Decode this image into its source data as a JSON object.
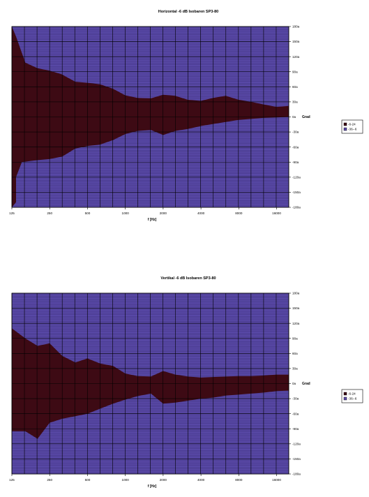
{
  "chart_data": [
    {
      "type": "area",
      "title": "Horizontal -6 dB Isobaren SP3-80",
      "xlabel": "f [Hz]",
      "ylabel": "Grad",
      "x_scale": "log",
      "x_tick_labels": [
        "125",
        "250",
        "500",
        "1000",
        "2000",
        "4000",
        "8000",
        "16000"
      ],
      "x_ticks": [
        125,
        250,
        500,
        1000,
        2000,
        4000,
        8000,
        16000
      ],
      "xlim": [
        125,
        20000
      ],
      "y_tick_labels": [
        "180a",
        "150a",
        "120a",
        "90a",
        "60a",
        "30a",
        "0a",
        "-30a",
        "-60a",
        "-90a",
        "-120a",
        "-150a",
        "-180a"
      ],
      "ylim": [
        -180,
        180
      ],
      "grid": true,
      "legend": {
        "placement": "right",
        "entries": [
          {
            "label": "-6-24",
            "color": "#3d0a14"
          },
          {
            "label": "-36--6",
            "color": "#5a4aa8"
          }
        ]
      },
      "series": [
        {
          "name": "-6-24",
          "upper": [
            [
              125,
              180
            ],
            [
              135,
              160
            ],
            [
              160,
              108
            ],
            [
              200,
              97
            ],
            [
              250,
              92
            ],
            [
              310,
              85
            ],
            [
              400,
              70
            ],
            [
              500,
              68
            ],
            [
              630,
              65
            ],
            [
              800,
              56
            ],
            [
              1000,
              43
            ],
            [
              1250,
              38
            ],
            [
              1600,
              37
            ],
            [
              2000,
              44
            ],
            [
              2500,
              42
            ],
            [
              3150,
              34
            ],
            [
              4000,
              32
            ],
            [
              5000,
              38
            ],
            [
              6300,
              42
            ],
            [
              8000,
              34
            ],
            [
              10000,
              30
            ],
            [
              12500,
              25
            ],
            [
              16000,
              20
            ],
            [
              20000,
              22
            ]
          ],
          "lower": [
            [
              125,
              -180
            ],
            [
              135,
              -170
            ],
            [
              135,
              -120
            ],
            [
              150,
              -90
            ],
            [
              200,
              -86
            ],
            [
              250,
              -84
            ],
            [
              315,
              -79
            ],
            [
              400,
              -63
            ],
            [
              500,
              -58
            ],
            [
              630,
              -55
            ],
            [
              800,
              -46
            ],
            [
              1000,
              -34
            ],
            [
              1250,
              -28
            ],
            [
              1600,
              -26
            ],
            [
              2000,
              -36
            ],
            [
              2500,
              -28
            ],
            [
              3150,
              -24
            ],
            [
              4000,
              -18
            ],
            [
              5000,
              -14
            ],
            [
              6300,
              -10
            ],
            [
              8000,
              -6
            ],
            [
              10000,
              -4
            ],
            [
              12500,
              -2
            ],
            [
              16000,
              -1
            ],
            [
              20000,
              0
            ]
          ]
        }
      ]
    },
    {
      "type": "area",
      "title": "Vertikal -6 dB Isobaren SP3-80",
      "xlabel": "f [Hz]",
      "ylabel": "Grad",
      "x_scale": "log",
      "x_tick_labels": [
        "125",
        "250",
        "500",
        "1000",
        "2000",
        "4000",
        "8000",
        "16000"
      ],
      "x_ticks": [
        125,
        250,
        500,
        1000,
        2000,
        4000,
        8000,
        16000
      ],
      "xlim": [
        125,
        20000
      ],
      "y_tick_labels": [
        "180a",
        "150a",
        "120a",
        "90a",
        "60a",
        "30a",
        "0a",
        "-30a",
        "-60a",
        "-90a",
        "-120a",
        "-150a",
        "-180a"
      ],
      "ylim": [
        -180,
        180
      ],
      "grid": true,
      "legend": {
        "placement": "right",
        "entries": [
          {
            "label": "-6-24",
            "color": "#3d0a14"
          },
          {
            "label": "-36--6",
            "color": "#5a4aa8"
          }
        ]
      },
      "series": [
        {
          "name": "-6-24",
          "upper": [
            [
              125,
              110
            ],
            [
              160,
              90
            ],
            [
              200,
              75
            ],
            [
              250,
              80
            ],
            [
              315,
              55
            ],
            [
              400,
              42
            ],
            [
              500,
              50
            ],
            [
              630,
              40
            ],
            [
              800,
              35
            ],
            [
              1000,
              20
            ],
            [
              1250,
              15
            ],
            [
              1600,
              14
            ],
            [
              2000,
              25
            ],
            [
              2500,
              18
            ],
            [
              3150,
              14
            ],
            [
              4000,
              12
            ],
            [
              5000,
              13
            ],
            [
              6300,
              14
            ],
            [
              8000,
              15
            ],
            [
              10000,
              15
            ],
            [
              12500,
              16
            ],
            [
              16000,
              18
            ],
            [
              20000,
              18
            ]
          ],
          "lower": [
            [
              125,
              -95
            ],
            [
              160,
              -95
            ],
            [
              200,
              -110
            ],
            [
              250,
              -78
            ],
            [
              315,
              -70
            ],
            [
              400,
              -65
            ],
            [
              500,
              -60
            ],
            [
              630,
              -50
            ],
            [
              800,
              -40
            ],
            [
              1000,
              -32
            ],
            [
              1250,
              -25
            ],
            [
              1600,
              -20
            ],
            [
              2000,
              -40
            ],
            [
              2500,
              -38
            ],
            [
              3150,
              -34
            ],
            [
              4000,
              -30
            ],
            [
              5000,
              -28
            ],
            [
              6300,
              -24
            ],
            [
              8000,
              -22
            ],
            [
              10000,
              -20
            ],
            [
              12500,
              -18
            ],
            [
              16000,
              -15
            ],
            [
              20000,
              -14
            ]
          ]
        }
      ]
    }
  ]
}
